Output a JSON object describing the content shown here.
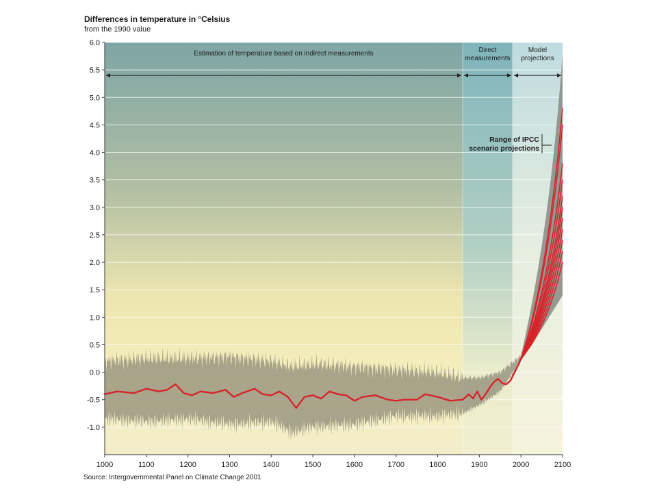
{
  "chart_data": {
    "type": "line",
    "title": "Differences in temperature in °Celsius",
    "subtitle": "from the 1990 value",
    "source": "Source: Intergovernmental Panel on Climate Change 2001",
    "xlabel": "",
    "ylabel": "",
    "xlim": [
      1000,
      2100
    ],
    "ylim": [
      -1.5,
      6.0
    ],
    "x_ticks": [
      1000,
      1100,
      1200,
      1300,
      1400,
      1500,
      1600,
      1700,
      1800,
      1900,
      2000,
      2100
    ],
    "y_ticks": [
      "6.0",
      "5.5",
      "5.0",
      "4.5",
      "4.0",
      "3.5",
      "3.0",
      "2.5",
      "2.0",
      "1.5",
      "1.0",
      "0.5",
      "0.0",
      "-0.5",
      "-1.0"
    ],
    "grid": "horizontal",
    "regions": [
      {
        "label": "Estimation of temperature based on indirect measurements",
        "from": 1000,
        "to": 1860
      },
      {
        "label": "Direct measurements",
        "label_lines": [
          "Direct",
          "measurements"
        ],
        "from": 1860,
        "to": 1980
      },
      {
        "label": "Model projections",
        "label_lines": [
          "Model",
          "projections"
        ],
        "from": 1980,
        "to": 2100
      }
    ],
    "annotation": {
      "lines": [
        "Range of IPCC",
        "scenario projections"
      ]
    },
    "series": [
      {
        "role": "historical-mean",
        "x": [
          1000,
          1030,
          1070,
          1100,
          1130,
          1150,
          1170,
          1190,
          1210,
          1230,
          1260,
          1290,
          1310,
          1330,
          1360,
          1380,
          1400,
          1420,
          1440,
          1460,
          1480,
          1500,
          1520,
          1540,
          1560,
          1580,
          1600,
          1620,
          1650,
          1680,
          1700,
          1720,
          1750,
          1770,
          1800,
          1830,
          1860,
          1875,
          1885,
          1895,
          1905,
          1915,
          1925,
          1935,
          1945,
          1955,
          1965,
          1975,
          1985,
          1995,
          2000
        ],
        "values": [
          -0.4,
          -0.35,
          -0.38,
          -0.3,
          -0.35,
          -0.32,
          -0.22,
          -0.38,
          -0.42,
          -0.35,
          -0.38,
          -0.32,
          -0.45,
          -0.38,
          -0.3,
          -0.4,
          -0.42,
          -0.35,
          -0.45,
          -0.65,
          -0.45,
          -0.42,
          -0.48,
          -0.35,
          -0.4,
          -0.42,
          -0.52,
          -0.45,
          -0.42,
          -0.5,
          -0.52,
          -0.5,
          -0.5,
          -0.4,
          -0.45,
          -0.52,
          -0.5,
          -0.4,
          -0.48,
          -0.35,
          -0.5,
          -0.4,
          -0.28,
          -0.18,
          -0.12,
          -0.2,
          -0.22,
          -0.15,
          0.0,
          0.15,
          0.25
        ]
      }
    ],
    "uncertainty_band": {
      "x": [
        1000,
        1100,
        1200,
        1300,
        1400,
        1450,
        1500,
        1600,
        1700,
        1800,
        1860,
        1900,
        1950,
        2000
      ],
      "upper": [
        0.2,
        0.25,
        0.25,
        0.28,
        0.2,
        0.1,
        0.15,
        0.1,
        0.05,
        0.0,
        -0.1,
        -0.1,
        0.0,
        0.3
      ],
      "lower": [
        -0.85,
        -0.9,
        -0.85,
        -0.95,
        -0.9,
        -1.1,
        -1.0,
        -0.95,
        -0.8,
        -0.8,
        -0.75,
        -0.6,
        -0.35,
        0.2
      ]
    },
    "projection_envelope": {
      "x": [
        2000,
        2050,
        2100
      ],
      "upper": [
        0.3,
        2.4,
        5.8
      ],
      "lower": [
        0.2,
        0.8,
        1.4
      ]
    },
    "projection_endpoints_2100": [
      2.0,
      2.2,
      2.4,
      2.6,
      2.8,
      3.0,
      3.2,
      3.5,
      3.8,
      4.5,
      4.8
    ]
  }
}
